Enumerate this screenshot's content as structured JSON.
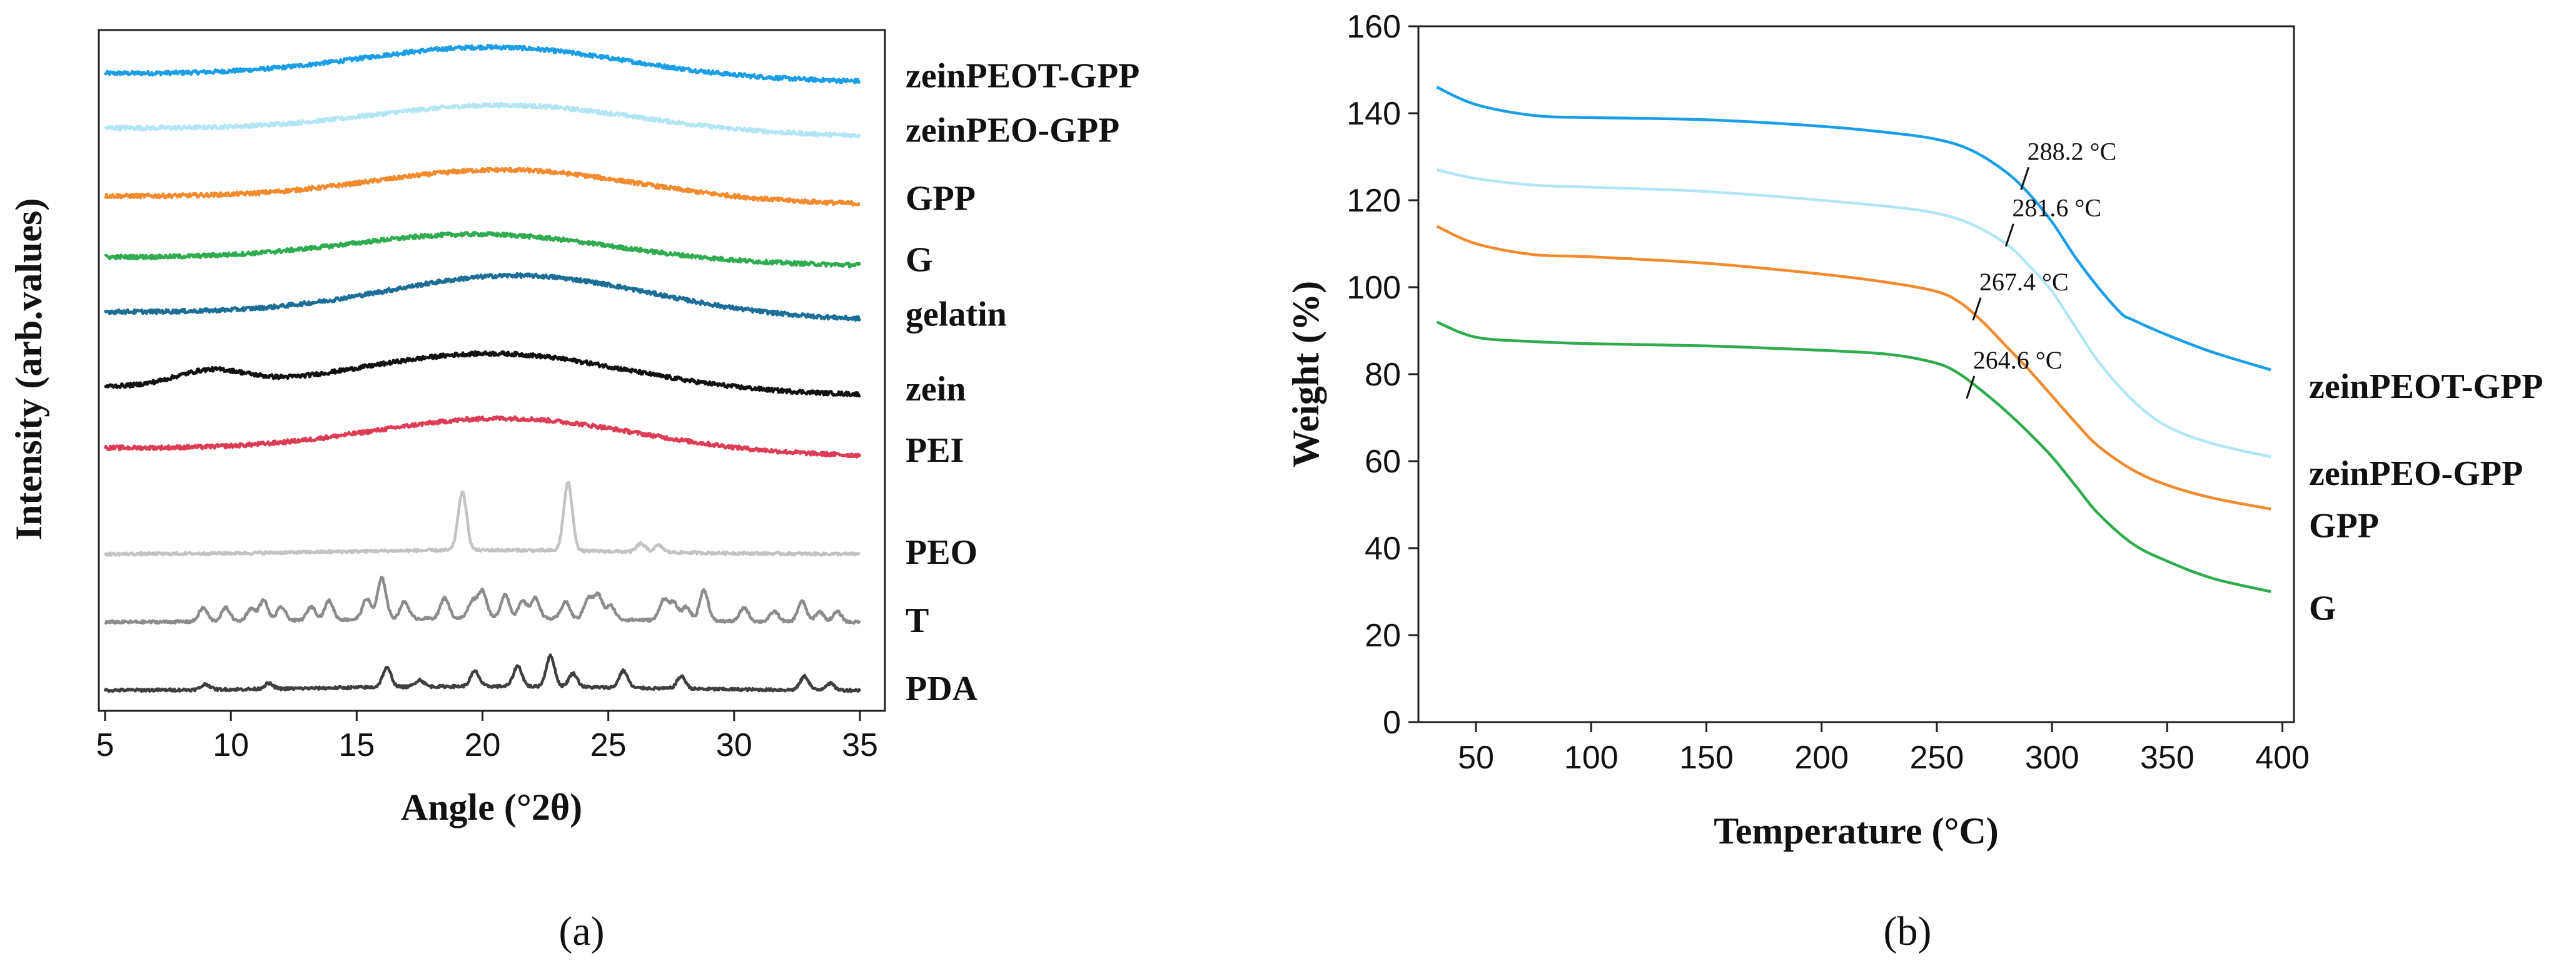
{
  "chart_data": [
    {
      "type": "line",
      "panel_label": "(a)",
      "title": "",
      "xlabel": "Angle (°2θ)",
      "ylabel": "Intensity (arb.values)",
      "xlim": [
        5,
        35
      ],
      "x_ticks": [
        5,
        10,
        15,
        20,
        25,
        30,
        35
      ],
      "x_tick_labels": [
        "5",
        "10",
        "15",
        "20",
        "25",
        "30",
        "35"
      ],
      "y_ticks_shown": false,
      "series": [
        {
          "name": "zeinPEOT-GPP",
          "color": "#1a9ee6",
          "baseline": 0.93,
          "shape": "amorphous",
          "hump_center": 20.5,
          "hump_height": 0.045
        },
        {
          "name": "zeinPEO-GPP",
          "color": "#b3e6f5",
          "baseline": 0.85,
          "shape": "amorphous",
          "hump_center": 21,
          "hump_height": 0.04
        },
        {
          "name": "GPP",
          "color": "#f28a2e",
          "baseline": 0.75,
          "shape": "amorphous",
          "hump_center": 21,
          "hump_height": 0.045
        },
        {
          "name": "G",
          "color": "#2fac4f",
          "baseline": 0.66,
          "shape": "amorphous",
          "hump_center": 20,
          "hump_height": 0.04
        },
        {
          "name": "gelatin",
          "color": "#1b6f96",
          "baseline": 0.58,
          "shape": "amorphous",
          "hump_center": 21.5,
          "hump_height": 0.06
        },
        {
          "name": "zein",
          "color": "#111111",
          "baseline": 0.47,
          "shape": "amorphous_double",
          "hump_center": 20.5,
          "hump_height": 0.055
        },
        {
          "name": "PEI",
          "color": "#dc3c55",
          "baseline": 0.38,
          "shape": "amorphous",
          "hump_center": 21,
          "hump_height": 0.05
        },
        {
          "name": "PEO",
          "color": "#c3c3c3",
          "baseline": 0.23,
          "shape": "crystalline",
          "peaks": [
            [
              19.2,
              0.085
            ],
            [
              23.4,
              0.1
            ],
            [
              26.3,
              0.012
            ],
            [
              27.0,
              0.01
            ]
          ]
        },
        {
          "name": "T",
          "color": "#8c8c8c",
          "baseline": 0.13,
          "shape": "crystalline",
          "peaks": [
            [
              8.9,
              0.02
            ],
            [
              9.8,
              0.02
            ],
            [
              10.8,
              0.018
            ],
            [
              11.3,
              0.03
            ],
            [
              12.0,
              0.02
            ],
            [
              13.2,
              0.02
            ],
            [
              13.9,
              0.028
            ],
            [
              15.4,
              0.03
            ],
            [
              16.0,
              0.06
            ],
            [
              16.9,
              0.025
            ],
            [
              18.5,
              0.03
            ],
            [
              19.6,
              0.025
            ],
            [
              20.0,
              0.04
            ],
            [
              20.9,
              0.035
            ],
            [
              21.6,
              0.025
            ],
            [
              22.1,
              0.03
            ],
            [
              23.3,
              0.025
            ],
            [
              24.2,
              0.03
            ],
            [
              24.6,
              0.035
            ],
            [
              25.1,
              0.02
            ],
            [
              27.2,
              0.03
            ],
            [
              27.6,
              0.025
            ],
            [
              28.1,
              0.02
            ],
            [
              28.8,
              0.045
            ],
            [
              30.4,
              0.02
            ],
            [
              31.6,
              0.015
            ],
            [
              32.7,
              0.03
            ],
            [
              33.4,
              0.015
            ],
            [
              34.1,
              0.015
            ]
          ]
        },
        {
          "name": "PDA",
          "color": "#3f3f3f",
          "baseline": 0.03,
          "shape": "crystalline",
          "peaks": [
            [
              9.0,
              0.008
            ],
            [
              11.5,
              0.008
            ],
            [
              16.2,
              0.028
            ],
            [
              17.5,
              0.01
            ],
            [
              19.7,
              0.022
            ],
            [
              21.4,
              0.03
            ],
            [
              22.7,
              0.045
            ],
            [
              23.6,
              0.02
            ],
            [
              25.6,
              0.025
            ],
            [
              27.9,
              0.018
            ],
            [
              32.8,
              0.02
            ],
            [
              33.8,
              0.01
            ]
          ]
        }
      ]
    },
    {
      "type": "line",
      "panel_label": "(b)",
      "title": "",
      "xlabel": "Temperature (°C)",
      "ylabel": "Weight (%)",
      "xlim": [
        25,
        405
      ],
      "ylim": [
        0,
        160
      ],
      "x_ticks": [
        50,
        100,
        150,
        200,
        250,
        300,
        350,
        400
      ],
      "x_tick_labels": [
        "50",
        "100",
        "150",
        "200",
        "250",
        "300",
        "350",
        "400"
      ],
      "y_ticks": [
        0,
        20,
        40,
        60,
        80,
        100,
        120,
        140,
        160
      ],
      "y_tick_labels": [
        "0",
        "20",
        "40",
        "60",
        "80",
        "100",
        "120",
        "140",
        "160"
      ],
      "series": [
        {
          "name": "zeinPEOT-GPP",
          "color": "#1a9ee6",
          "x": [
            33,
            50,
            75,
            100,
            150,
            200,
            230,
            250,
            265,
            280,
            290,
            300,
            310,
            320,
            330,
            335,
            350,
            370,
            395
          ],
          "y": [
            146,
            142,
            139.5,
            139,
            138.5,
            137,
            135.5,
            134,
            131.5,
            126.5,
            121.5,
            115,
            107,
            100,
            94,
            92.5,
            89,
            85,
            81
          ]
        },
        {
          "name": "zeinPEO-GPP",
          "color": "#b3e6f5",
          "x": [
            33,
            50,
            75,
            100,
            150,
            200,
            230,
            250,
            265,
            280,
            290,
            300,
            310,
            320,
            335,
            350,
            370,
            395
          ],
          "y": [
            127,
            125,
            123.5,
            123,
            122,
            120,
            118.5,
            117,
            114.5,
            110,
            105,
            99,
            91,
            83,
            74,
            68,
            64,
            61
          ]
        },
        {
          "name": "GPP",
          "color": "#f28a2e",
          "x": [
            33,
            50,
            75,
            100,
            150,
            200,
            230,
            250,
            260,
            270,
            280,
            290,
            300,
            310,
            320,
            335,
            350,
            370,
            395
          ],
          "y": [
            114,
            110,
            107.5,
            107,
            105.5,
            103,
            101,
            99,
            96.5,
            92,
            86.5,
            81,
            75,
            69,
            63.5,
            58,
            54.5,
            51.5,
            49
          ]
        },
        {
          "name": "G",
          "color": "#2fac4f",
          "x": [
            33,
            50,
            75,
            100,
            150,
            200,
            230,
            250,
            260,
            270,
            280,
            290,
            300,
            310,
            320,
            335,
            350,
            370,
            395
          ],
          "y": [
            92,
            88.5,
            87.5,
            87,
            86.5,
            85.5,
            84.5,
            82.5,
            80,
            76,
            71.5,
            66.5,
            61,
            54.5,
            48,
            41,
            37,
            33,
            30
          ]
        }
      ],
      "annotations": [
        {
          "text": "288.2 °C",
          "x": 288.2,
          "y": 125
        },
        {
          "text": "281.6 °C",
          "x": 281.6,
          "y": 112
        },
        {
          "text": "267.4 °C",
          "x": 267.4,
          "y": 95
        },
        {
          "text": "264.6 °C",
          "x": 264.6,
          "y": 77
        }
      ]
    }
  ]
}
